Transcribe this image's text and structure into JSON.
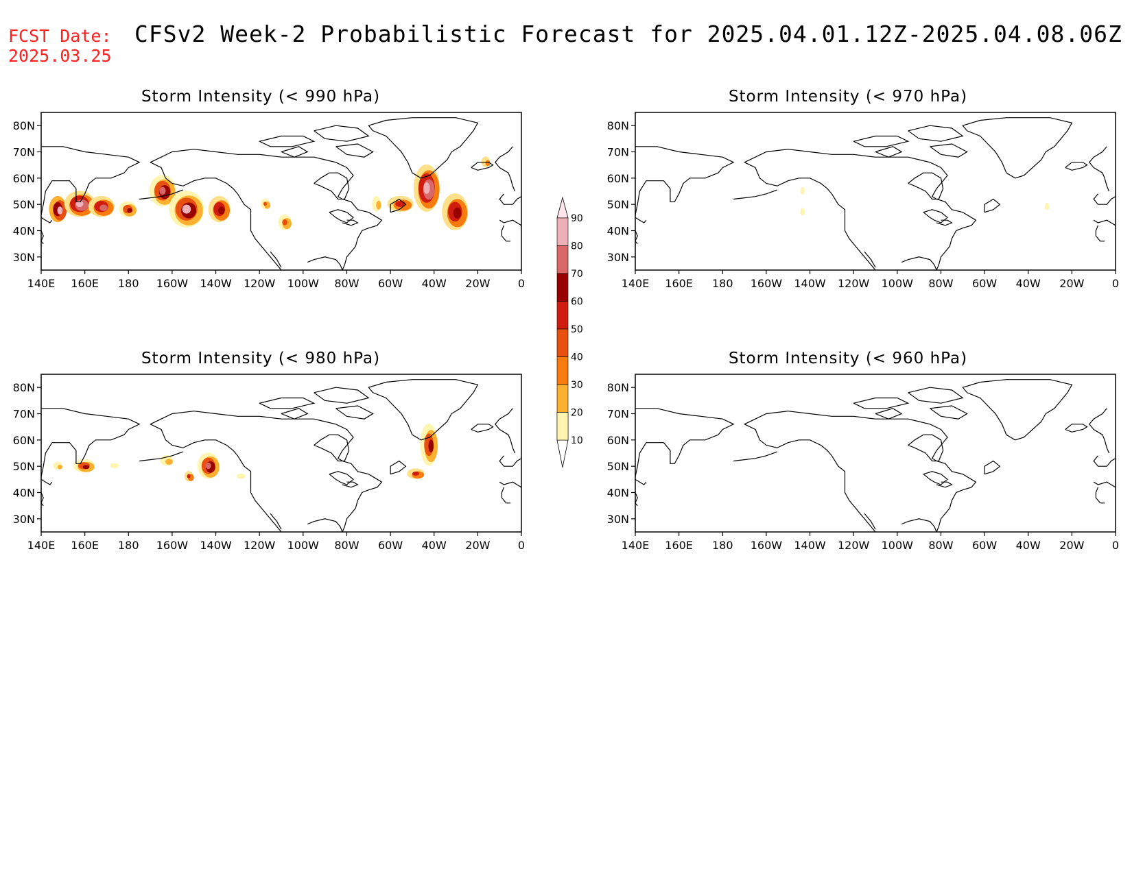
{
  "header": {
    "fcst_label": "FCST Date:",
    "fcst_date": "2025.03.25",
    "title": "CFSv2 Week-2 Probabilistic Forecast for 2025.04.01.12Z-2025.04.08.06Z"
  },
  "axes": {
    "lat_labels": [
      "80N",
      "70N",
      "60N",
      "50N",
      "40N",
      "30N"
    ],
    "lat_values": [
      80,
      70,
      60,
      50,
      40,
      30
    ],
    "lon_labels": [
      "140E",
      "160E",
      "180",
      "160W",
      "140W",
      "120W",
      "100W",
      "80W",
      "60W",
      "40W",
      "20W",
      "0"
    ]
  },
  "panels": [
    {
      "id": "p990",
      "title": "Storm Intensity (< 990 hPa)"
    },
    {
      "id": "p970",
      "title": "Storm Intensity (< 970 hPa)"
    },
    {
      "id": "p980",
      "title": "Storm Intensity (< 980 hPa)"
    },
    {
      "id": "p960",
      "title": "Storm Intensity (< 960 hPa)"
    }
  ],
  "colorbar": {
    "labels": [
      "10",
      "20",
      "30",
      "40",
      "50",
      "60",
      "70",
      "80",
      "90"
    ],
    "colors": [
      "#fff4b0",
      "#fde08a",
      "#fbb030",
      "#f67c10",
      "#e85010",
      "#d01c10",
      "#980000",
      "#d86868",
      "#f0b0b8",
      "#ffe4ec"
    ]
  },
  "land_color": "#ffffff",
  "coast_color": "#000000"
}
